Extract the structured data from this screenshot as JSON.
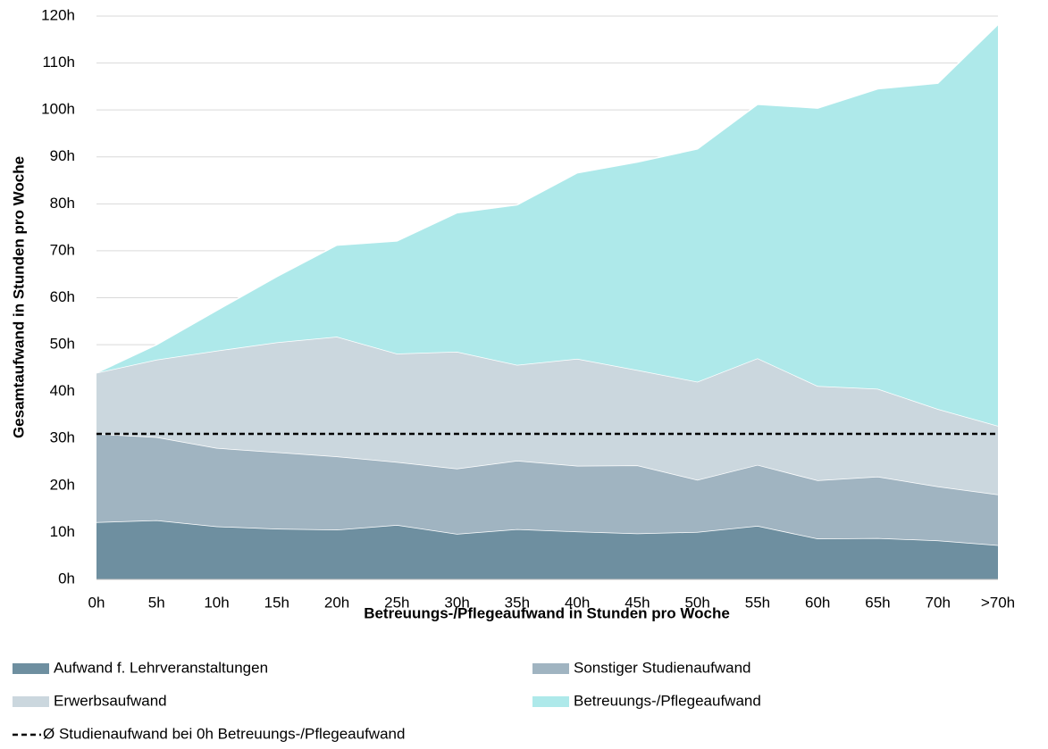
{
  "chart_data": {
    "type": "stacked_area",
    "x_label": "Betreuungs-/Pflegeaufwand in Stunden pro Woche",
    "y_label": "Gesamtaufwand in Stunden pro Woche",
    "categories": [
      "0h",
      "5h",
      "10h",
      "15h",
      "20h",
      "25h",
      "30h",
      "35h",
      "40h",
      "45h",
      "50h",
      "55h",
      "60h",
      "65h",
      "70h",
      ">70h"
    ],
    "series": [
      {
        "name": "Aufwand f. Lehrveranstaltungen",
        "color": "#6e8fa0",
        "values": [
          12.2,
          12.6,
          11.3,
          10.8,
          10.6,
          11.6,
          9.7,
          10.7,
          10.2,
          9.8,
          10.1,
          11.4,
          8.7,
          8.8,
          8.3,
          7.3
        ]
      },
      {
        "name": "Sonstiger Studienaufwand",
        "color": "#a0b4c1",
        "values": [
          18.8,
          17.7,
          16.7,
          16.3,
          15.6,
          13.4,
          13.9,
          14.6,
          14.0,
          14.5,
          11.1,
          13.0,
          12.4,
          13.1,
          11.5,
          10.8
        ]
      },
      {
        "name": "Erwerbsaufwand",
        "color": "#cbd7de",
        "values": [
          13.0,
          16.5,
          20.7,
          23.4,
          25.5,
          23.1,
          24.9,
          20.4,
          22.8,
          20.3,
          20.9,
          22.7,
          20.1,
          18.7,
          16.5,
          14.6
        ]
      },
      {
        "name": "Betreuungs-/Pflegeaufwand",
        "color": "#aee9ea",
        "values": [
          0,
          3.2,
          8.6,
          14.0,
          19.5,
          24.0,
          29.6,
          34.1,
          39.6,
          44.3,
          49.6,
          54.1,
          59.2,
          63.9,
          69.4,
          85.5
        ]
      }
    ],
    "reference_line": {
      "name": "Ø Studienaufwand bei 0h Betreuungs-/Pflegeaufwand",
      "value": 31,
      "color": "#000000"
    },
    "ylim": [
      0,
      120
    ],
    "yticks": [
      {
        "value": 0,
        "label": "0h"
      },
      {
        "value": 10,
        "label": "10h"
      },
      {
        "value": 20,
        "label": "20h"
      },
      {
        "value": 30,
        "label": "30h"
      },
      {
        "value": 40,
        "label": "40h"
      },
      {
        "value": 50,
        "label": "50h"
      },
      {
        "value": 60,
        "label": "60h"
      },
      {
        "value": 70,
        "label": "70h"
      },
      {
        "value": 80,
        "label": "80h"
      },
      {
        "value": 90,
        "label": "90h"
      },
      {
        "value": 100,
        "label": "100h"
      },
      {
        "value": 110,
        "label": "110h"
      },
      {
        "value": 120,
        "label": "120h"
      }
    ],
    "grid": true
  }
}
